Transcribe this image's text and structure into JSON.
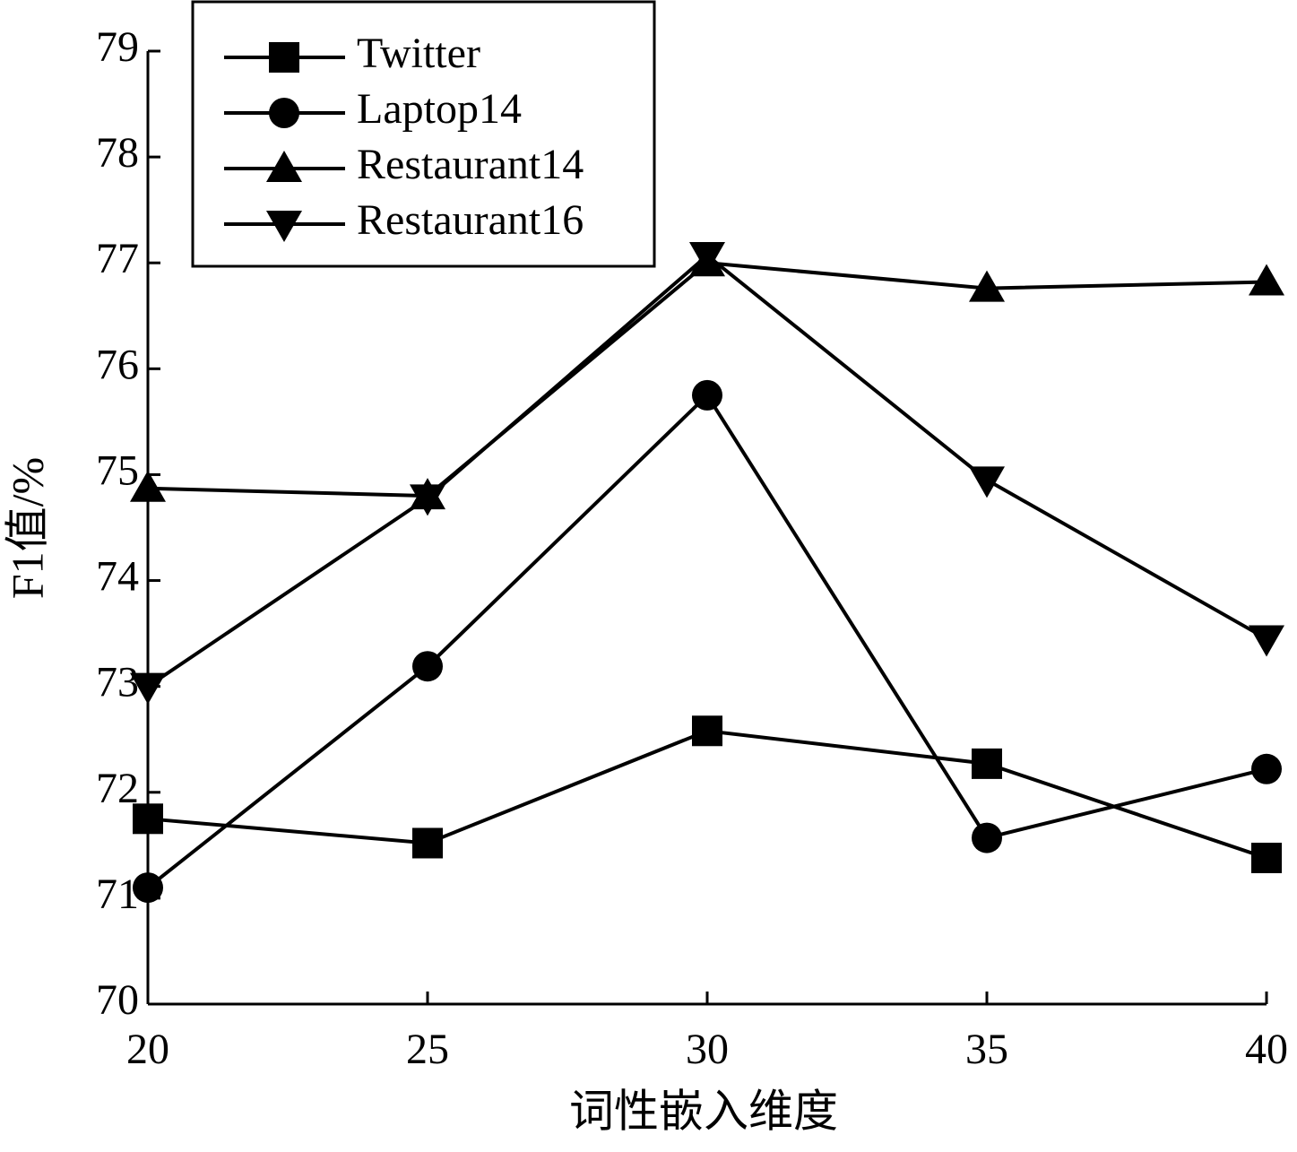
{
  "chart_data": {
    "type": "line",
    "x_label": "词性嵌入维度",
    "y_label": "F1值/%",
    "x": [
      20,
      25,
      30,
      35,
      40
    ],
    "series": [
      {
        "name": "Twitter",
        "color": "#000000",
        "marker": "square",
        "values": [
          71.75,
          71.52,
          72.58,
          72.27,
          71.38
        ]
      },
      {
        "name": "Laptop14",
        "color": "#000000",
        "marker": "circle",
        "values": [
          71.1,
          73.19,
          75.75,
          71.57,
          72.22
        ]
      },
      {
        "name": "Restaurant14",
        "color": "#000000",
        "marker": "triangle-up",
        "values": [
          74.87,
          74.8,
          77.0,
          76.76,
          76.82
        ]
      },
      {
        "name": "Restaurant16",
        "color": "#000000",
        "marker": "triangle-down",
        "values": [
          73.0,
          74.78,
          77.07,
          74.95,
          73.45
        ]
      }
    ],
    "xlim": [
      20,
      40
    ],
    "xticks": [
      20,
      25,
      30,
      35,
      40
    ],
    "ylim": [
      70,
      79
    ],
    "yticks": [
      70,
      71,
      72,
      73,
      74,
      75,
      76,
      77,
      78,
      79
    ],
    "grid": false,
    "legend": "upper left"
  }
}
